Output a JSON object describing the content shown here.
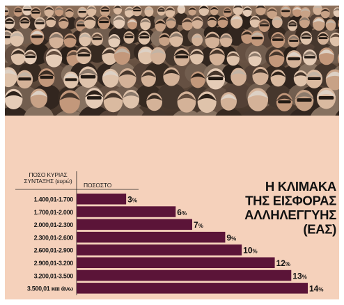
{
  "chart_data": {
    "type": "bar",
    "orientation": "horizontal",
    "title_lines": [
      "Η ΚΛΙΜΑΚΑ",
      "ΤΗΣ ΕΙΣΦΟΡΑΣ",
      "ΑΛΛΗΛΕΓΓΥΗΣ",
      "(ΕΑΣ)"
    ],
    "header_left": [
      "ΠΟΣΟ ΚΥΡΙΑΣ",
      "ΣΥΝΤΑΞΗΣ (ευρώ)"
    ],
    "header_right": "ΠΟΣΟΣΤΟ",
    "categories": [
      "1.400,01-1.700",
      "1.700,01-2.000",
      "2.000,01-2.300",
      "2.300,01-2.600",
      "2.600,01-2.900",
      "2.900,01-3.200",
      "3.200,01-3.500",
      "3.500,01 και άνω"
    ],
    "values": [
      3,
      6,
      7,
      9,
      10,
      12,
      13,
      14
    ],
    "unit": "%",
    "bar_color": "#5b1438",
    "xlim": [
      0,
      14
    ],
    "grid": false,
    "legend": "none"
  },
  "photo": {
    "description_icon": "crowd-photo",
    "tone": "sepia"
  }
}
